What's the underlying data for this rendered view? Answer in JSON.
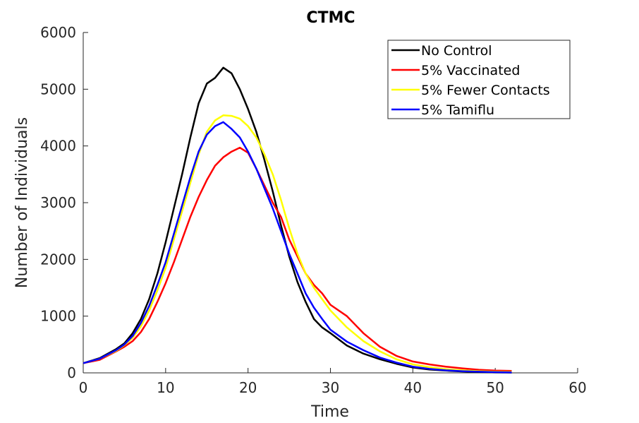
{
  "chart_data": {
    "type": "line",
    "title": "CTMC",
    "xlabel": "Time",
    "ylabel": "Number of Individuals",
    "xlim": [
      0,
      60
    ],
    "ylim": [
      0,
      6000
    ],
    "xticks": [
      0,
      10,
      20,
      30,
      40,
      50,
      60
    ],
    "yticks": [
      0,
      1000,
      2000,
      3000,
      4000,
      5000,
      6000
    ],
    "xtick_labels": [
      "0",
      "10",
      "20",
      "30",
      "40",
      "50",
      "60"
    ],
    "ytick_labels": [
      "0",
      "1000",
      "2000",
      "3000",
      "4000",
      "5000",
      "6000"
    ],
    "grid": false,
    "legend_position": "top-right",
    "series": [
      {
        "name": "No Control",
        "color": "#000000",
        "x": [
          0,
          2,
          4,
          5,
          6,
          7,
          8,
          9,
          10,
          11,
          12,
          13,
          14,
          15,
          16,
          17,
          18,
          19,
          20,
          21,
          22,
          23,
          24,
          25,
          26,
          27,
          28,
          29,
          30,
          32,
          34,
          36,
          38,
          40,
          42,
          44,
          46,
          48,
          50,
          52
        ],
        "y": [
          170,
          260,
          420,
          520,
          700,
          950,
          1300,
          1750,
          2300,
          2900,
          3500,
          4150,
          4750,
          5100,
          5200,
          5380,
          5280,
          5000,
          4650,
          4250,
          3750,
          3200,
          2600,
          2050,
          1600,
          1250,
          950,
          800,
          700,
          480,
          340,
          240,
          160,
          95,
          60,
          40,
          25,
          15,
          8,
          5
        ]
      },
      {
        "name": "5% Vaccinated",
        "color": "#ff0000",
        "x": [
          0,
          2,
          4,
          5,
          6,
          7,
          8,
          9,
          10,
          11,
          12,
          13,
          14,
          15,
          16,
          17,
          18,
          19,
          20,
          21,
          22,
          23,
          24,
          25,
          26,
          27,
          28,
          29,
          30,
          32,
          34,
          36,
          38,
          40,
          42,
          44,
          46,
          48,
          50,
          52
        ],
        "y": [
          170,
          230,
          380,
          460,
          560,
          720,
          950,
          1250,
          1580,
          1950,
          2350,
          2750,
          3100,
          3400,
          3650,
          3800,
          3900,
          3970,
          3880,
          3600,
          3300,
          3000,
          2750,
          2350,
          2050,
          1750,
          1550,
          1400,
          1200,
          1000,
          700,
          460,
          300,
          200,
          150,
          110,
          80,
          55,
          40,
          35
        ]
      },
      {
        "name": "5% Fewer Contacts",
        "color": "#ffff00",
        "x": [
          0,
          2,
          4,
          5,
          6,
          7,
          8,
          9,
          10,
          11,
          12,
          13,
          14,
          15,
          16,
          17,
          18,
          19,
          20,
          21,
          22,
          23,
          24,
          25,
          26,
          27,
          28,
          29,
          30,
          32,
          34,
          36,
          38,
          40,
          42,
          44,
          46,
          48,
          50,
          52
        ],
        "y": [
          170,
          250,
          390,
          490,
          620,
          820,
          1100,
          1450,
          1850,
          2350,
          2850,
          3350,
          3850,
          4250,
          4450,
          4540,
          4530,
          4480,
          4350,
          4150,
          3850,
          3500,
          3050,
          2550,
          2100,
          1750,
          1500,
          1300,
          1100,
          800,
          560,
          380,
          240,
          150,
          100,
          65,
          45,
          30,
          20,
          15
        ]
      },
      {
        "name": "5% Tamiflu",
        "color": "#0000ff",
        "x": [
          0,
          2,
          4,
          5,
          6,
          7,
          8,
          9,
          10,
          11,
          12,
          13,
          14,
          15,
          16,
          17,
          18,
          19,
          20,
          21,
          22,
          23,
          24,
          25,
          26,
          27,
          28,
          29,
          30,
          32,
          34,
          36,
          38,
          40,
          42,
          44,
          46,
          48,
          50,
          52
        ],
        "y": [
          170,
          250,
          400,
          500,
          650,
          880,
          1180,
          1550,
          1950,
          2450,
          2950,
          3450,
          3900,
          4200,
          4350,
          4420,
          4300,
          4150,
          3900,
          3600,
          3250,
          2900,
          2500,
          2100,
          1750,
          1400,
          1150,
          950,
          760,
          550,
          400,
          270,
          180,
          110,
          70,
          45,
          30,
          20,
          12,
          8
        ]
      }
    ]
  }
}
